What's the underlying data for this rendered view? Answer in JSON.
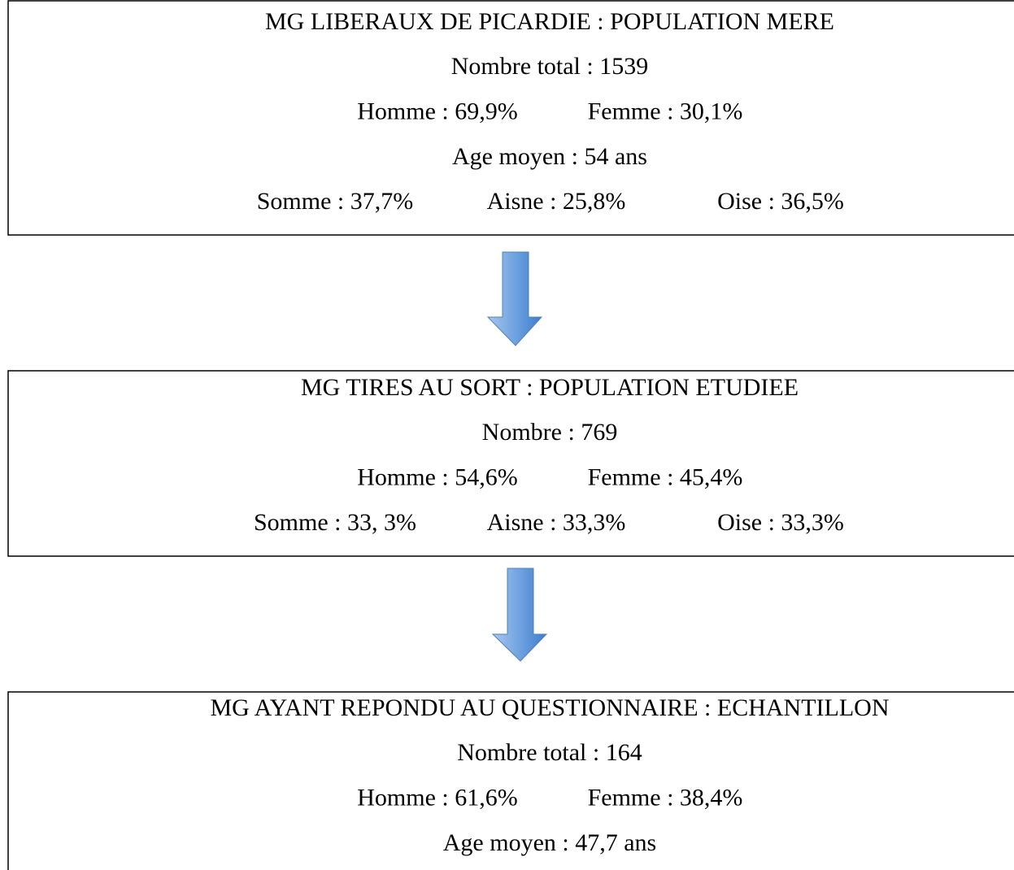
{
  "boxes": [
    {
      "title": "MG LIBERAUX DE PICARDIE : POPULATION MERE",
      "lines": [
        [
          "Nombre total : 1539"
        ],
        [
          "Homme : 69,9%",
          "Femme : 30,1%"
        ],
        [
          "Age moyen : 54 ans"
        ],
        [
          "Somme : 37,7%",
          "Aisne : 25,8%",
          "Oise : 36,5%"
        ]
      ]
    },
    {
      "title": "MG TIRES AU SORT : POPULATION ETUDIEE",
      "lines": [
        [
          "Nombre : 769"
        ],
        [
          "Homme : 54,6%",
          "Femme : 45,4%"
        ],
        [
          "Somme : 33, 3%",
          "Aisne : 33,3%",
          "Oise : 33,3%"
        ]
      ]
    },
    {
      "title": "MG AYANT REPONDU AU QUESTIONNAIRE : ECHANTILLON",
      "lines": [
        [
          "Nombre total : 164"
        ],
        [
          "Homme : 61,6%",
          "Femme : 38,4%"
        ],
        [
          "Age moyen : 47,7 ans"
        ]
      ]
    }
  ]
}
